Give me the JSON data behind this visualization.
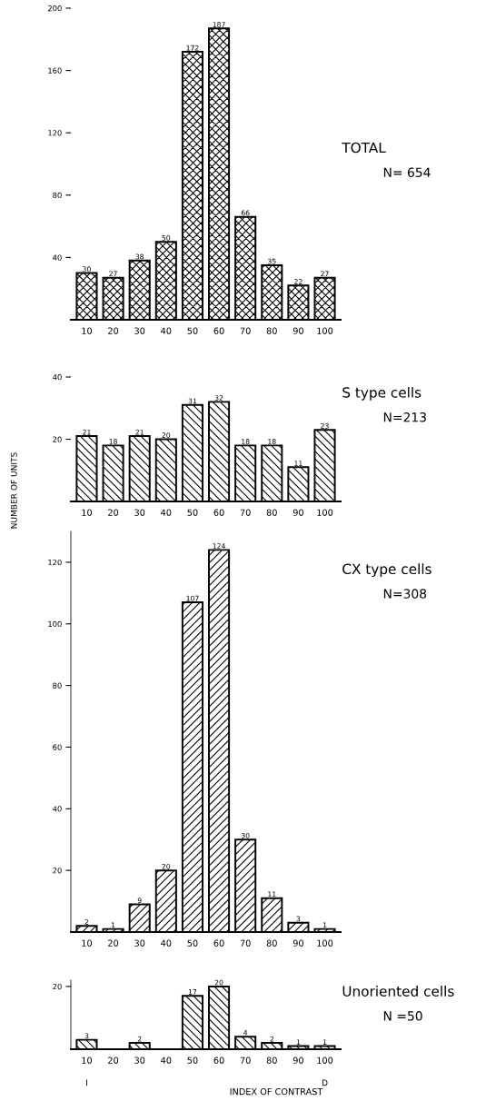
{
  "chart_data": [
    {
      "type": "bar",
      "title": "TOTAL",
      "annotations": [
        "N= 654"
      ],
      "categories": [
        "10",
        "20",
        "30",
        "40",
        "50",
        "60",
        "70",
        "80",
        "90",
        "100"
      ],
      "values": [
        30,
        27,
        38,
        50,
        172,
        187,
        66,
        35,
        22,
        27
      ],
      "color": "#000000",
      "ylim": [
        0,
        200
      ],
      "yticks": [
        40,
        80,
        120,
        160,
        200
      ],
      "data_labels": true,
      "grid": false,
      "legend": false
    },
    {
      "type": "bar",
      "title": "S type cells",
      "annotations": [
        "N=213"
      ],
      "categories": [
        "10",
        "20",
        "30",
        "40",
        "50",
        "60",
        "70",
        "80",
        "90",
        "100"
      ],
      "values": [
        21,
        18,
        21,
        20,
        31,
        32,
        18,
        18,
        11,
        23
      ],
      "color": "#000000",
      "ylim": [
        0,
        40
      ],
      "yticks": [
        20,
        40
      ],
      "data_labels": true,
      "grid": false,
      "legend": false
    },
    {
      "type": "bar",
      "title": "CX type cells",
      "annotations": [
        "N=308"
      ],
      "ylabel": "NUMBER OF UNITS",
      "categories": [
        "10",
        "20",
        "30",
        "40",
        "50",
        "60",
        "70",
        "80",
        "90",
        "100"
      ],
      "values": [
        2,
        1,
        9,
        20,
        107,
        124,
        30,
        11,
        3,
        1
      ],
      "color": "#000000",
      "ylim": [
        0,
        130
      ],
      "yticks": [
        20,
        40,
        60,
        80,
        100,
        120
      ],
      "data_labels": true,
      "grid": false,
      "legend": false
    },
    {
      "type": "bar",
      "title": "Unoriented cells",
      "annotations": [
        "N =50",
        "I",
        "D"
      ],
      "xlabel": "INDEX OF CONTRAST",
      "categories": [
        "10",
        "20",
        "30",
        "40",
        "50",
        "60",
        "70",
        "80",
        "90",
        "100"
      ],
      "values": [
        3,
        null,
        2,
        null,
        17,
        20,
        4,
        2,
        1,
        1
      ],
      "color": "#000000",
      "ylim": [
        0,
        22
      ],
      "yticks": [
        20
      ],
      "data_labels": true,
      "grid": false,
      "legend": false
    }
  ]
}
